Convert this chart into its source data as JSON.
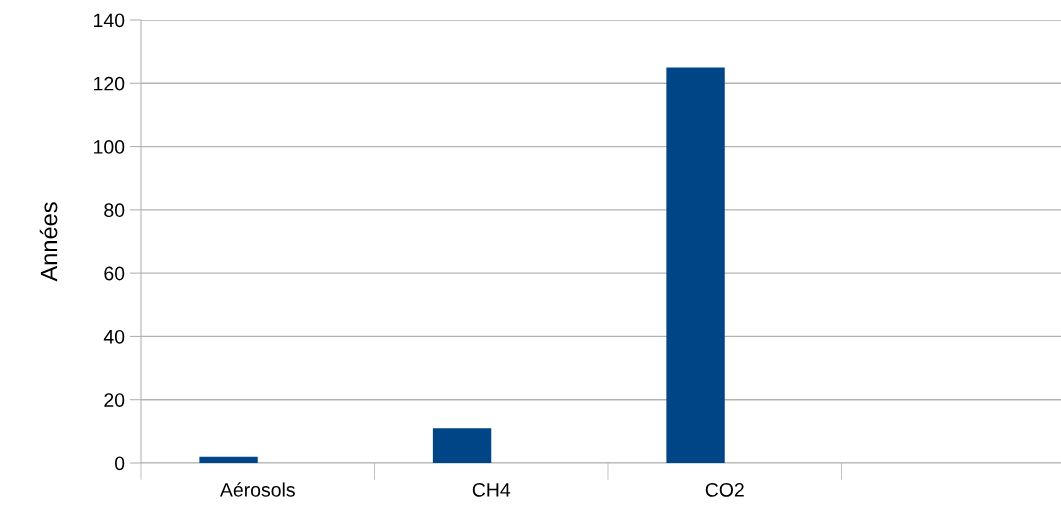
{
  "chart_data": {
    "type": "bar",
    "ylabel": "Années",
    "categories": [
      "Aérosols",
      "CH4",
      "CO2",
      null
    ],
    "series": [
      {
        "color": "#004586",
        "values": [
          2,
          11,
          125,
          null
        ]
      },
      {
        "color": "#ff420e",
        "values": [
          null,
          null,
          null,
          null
        ]
      }
    ],
    "ylim": [
      0,
      140
    ],
    "yticks": [
      0,
      20,
      40,
      60,
      80,
      100,
      120,
      140
    ],
    "grid": "y",
    "legend": false
  }
}
